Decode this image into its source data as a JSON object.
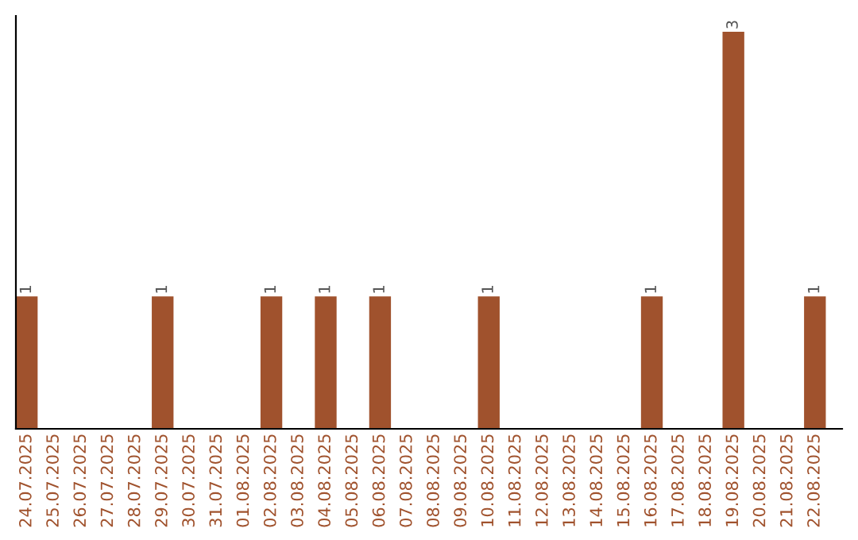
{
  "chart_data": {
    "type": "bar",
    "categories": [
      "24.07.2025",
      "25.07.2025",
      "26.07.2025",
      "27.07.2025",
      "28.07.2025",
      "29.07.2025",
      "30.07.2025",
      "31.07.2025",
      "01.08.2025",
      "02.08.2025",
      "03.08.2025",
      "04.08.2025",
      "05.08.2025",
      "06.08.2025",
      "07.08.2025",
      "08.08.2025",
      "09.08.2025",
      "10.08.2025",
      "11.08.2025",
      "12.08.2025",
      "13.08.2025",
      "14.08.2025",
      "15.08.2025",
      "16.08.2025",
      "17.08.2025",
      "18.08.2025",
      "19.08.2025",
      "20.08.2025",
      "21.08.2025",
      "22.08.2025"
    ],
    "values": [
      1,
      0,
      0,
      0,
      0,
      1,
      0,
      0,
      0,
      1,
      0,
      1,
      0,
      1,
      0,
      0,
      0,
      1,
      0,
      0,
      0,
      0,
      0,
      1,
      0,
      0,
      3,
      0,
      0,
      1
    ],
    "value_labels": [
      "1",
      null,
      null,
      null,
      null,
      "1",
      null,
      null,
      null,
      "1",
      null,
      "1",
      null,
      "1",
      null,
      null,
      null,
      "1",
      null,
      null,
      null,
      null,
      null,
      "1",
      null,
      null,
      "3",
      null,
      null,
      "1"
    ],
    "color": "#a0522d",
    "tick_labels": "x",
    "grid": false,
    "legend": false
  }
}
